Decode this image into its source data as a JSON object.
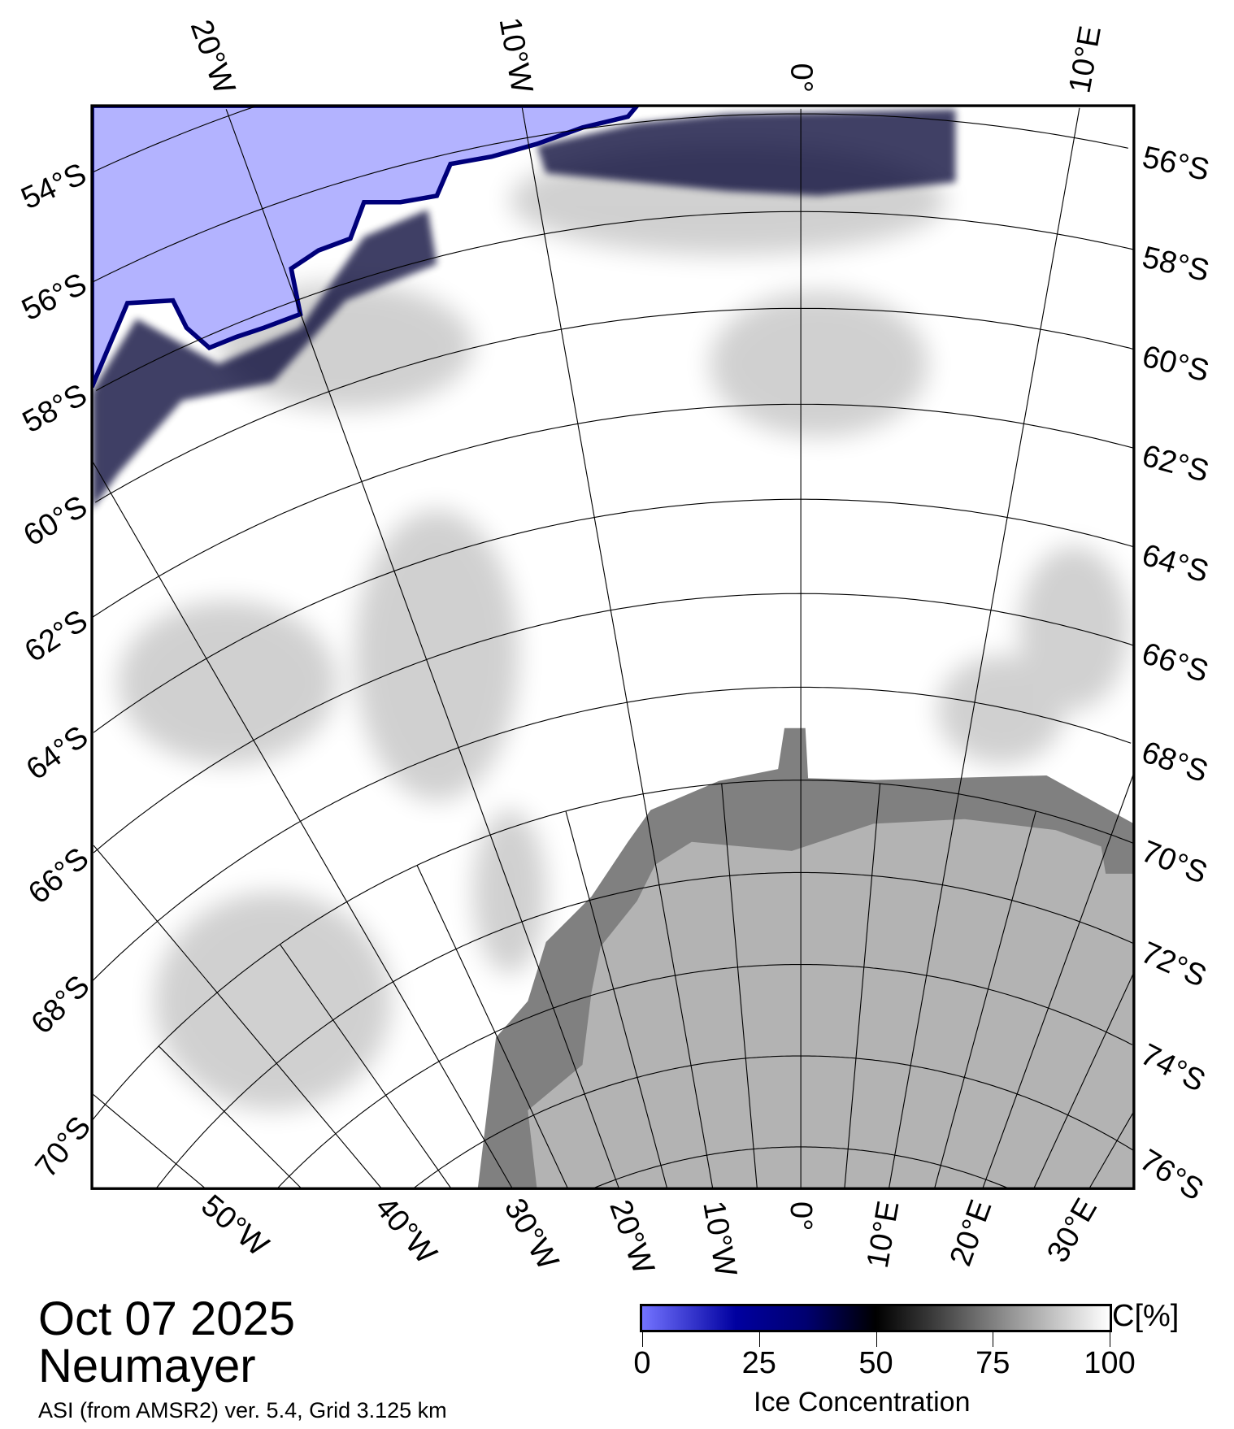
{
  "map": {
    "colors": {
      "open_water": "#b3b3ff",
      "land": "#b3b3b3",
      "ice_shelf": "#808080",
      "sea_ice": "#ffffff",
      "frame": "#000000"
    },
    "lat_labels_left": [
      "54°S",
      "56°S",
      "58°S",
      "60°S",
      "62°S",
      "64°S",
      "66°S",
      "68°S",
      "70°S"
    ],
    "lat_labels_right": [
      "56°S",
      "58°S",
      "60°S",
      "62°S",
      "64°S",
      "66°S",
      "68°S",
      "70°S",
      "72°S",
      "74°S",
      "76°S"
    ],
    "lon_labels_top": [
      "20°W",
      "10°W",
      "0°",
      "10°E"
    ],
    "lon_labels_bottom": [
      "50°W",
      "40°W",
      "30°W",
      "20°W",
      "10°W",
      "0°",
      "10°E",
      "20°E",
      "30°E"
    ]
  },
  "info": {
    "date": "Oct 07 2025",
    "region": "Neumayer",
    "source": "ASI (from AMSR2) ver. 5.4,  Grid 3.125 km"
  },
  "colorbar": {
    "ticks": [
      "0",
      "25",
      "50",
      "75",
      "100"
    ],
    "unit": "C[%]",
    "label": "Ice Concentration"
  }
}
